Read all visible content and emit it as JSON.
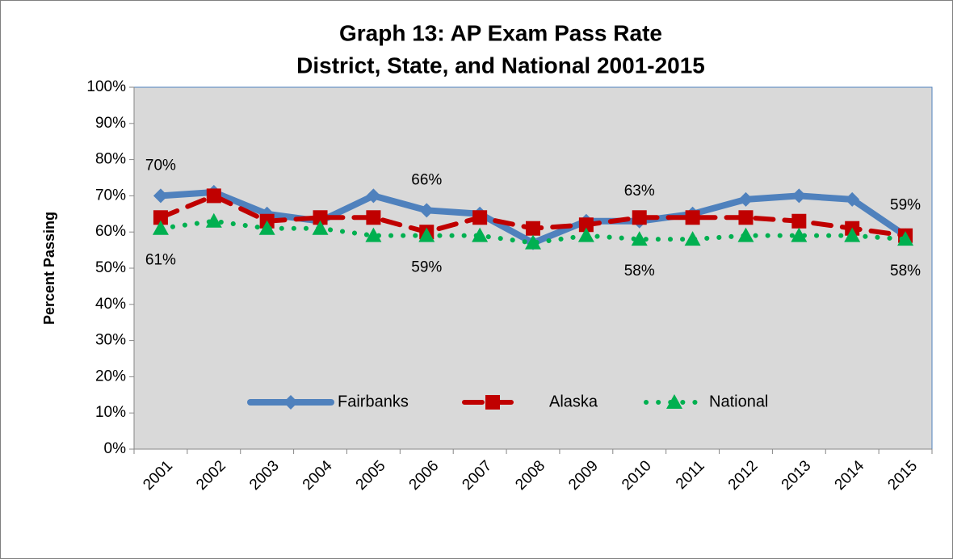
{
  "chart_data": {
    "type": "line",
    "title": [
      "Graph 13: AP Exam Pass Rate",
      "District, State, and National 2001-2015"
    ],
    "y_label": "Percent Passing",
    "categories": [
      "2001",
      "2002",
      "2003",
      "2004",
      "2005",
      "2006",
      "2007",
      "2008",
      "2009",
      "2010",
      "2011",
      "2012",
      "2013",
      "2014",
      "2015"
    ],
    "series": [
      {
        "name": "Fairbanks",
        "color": "#4f81bd",
        "values": [
          70,
          71,
          65,
          63,
          70,
          66,
          65,
          57,
          63,
          63,
          65,
          69,
          70,
          69,
          59
        ],
        "value_labels": [
          "70%",
          null,
          null,
          null,
          null,
          "66%",
          null,
          null,
          null,
          "63%",
          null,
          null,
          null,
          null,
          "59%"
        ]
      },
      {
        "name": "Alaska",
        "color": "#c00000",
        "values": [
          64,
          70,
          63,
          64,
          64,
          60,
          64,
          61,
          62,
          64,
          64,
          64,
          63,
          61,
          59
        ]
      },
      {
        "name": "National",
        "color": "#00b050",
        "values": [
          61,
          63,
          61,
          61,
          59,
          59,
          59,
          57,
          59,
          58,
          58,
          59,
          59,
          59,
          58
        ],
        "value_labels": [
          "61%",
          null,
          null,
          null,
          null,
          "59%",
          null,
          null,
          null,
          "58%",
          null,
          null,
          null,
          null,
          "58%"
        ]
      }
    ],
    "ylim": [
      0,
      100
    ],
    "yticks": [
      {
        "value": 0,
        "label": "0%"
      },
      {
        "value": 10,
        "label": "10%"
      },
      {
        "value": 20,
        "label": "20%"
      },
      {
        "value": 30,
        "label": "30%"
      },
      {
        "value": 40,
        "label": "40%"
      },
      {
        "value": 50,
        "label": "50%"
      },
      {
        "value": 60,
        "label": "60%"
      },
      {
        "value": 70,
        "label": "70%"
      },
      {
        "value": 80,
        "label": "80%"
      },
      {
        "value": 90,
        "label": "90%"
      },
      {
        "value": 100,
        "label": "100%"
      }
    ],
    "legend": "bottom",
    "grid": false
  }
}
